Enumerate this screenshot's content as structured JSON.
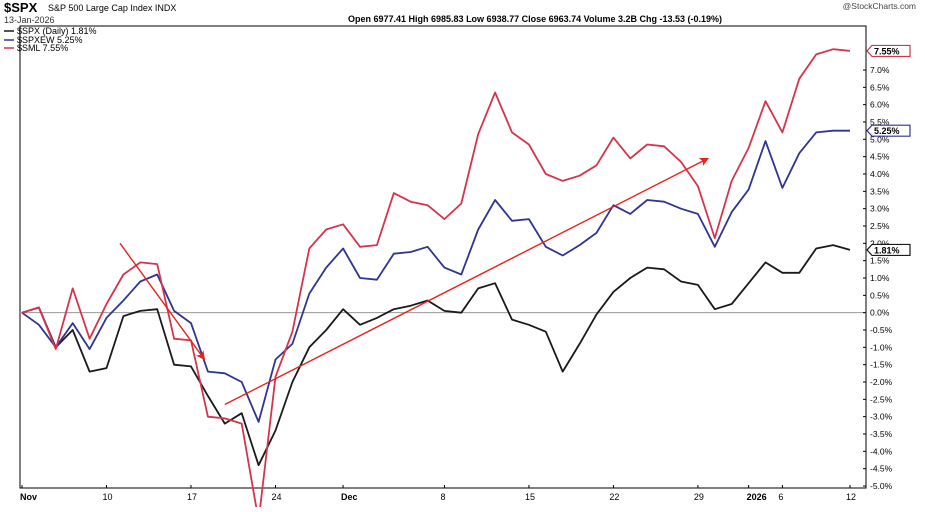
{
  "header": {
    "symbol": "$SPX",
    "name": "S&P 500 Large Cap Index INDX",
    "date": "13-Jan-2026",
    "stats": "Open 6977.41  High 6985.83  Low 6938.77  Close 6963.74  Volume 3.2B  Chg -13.53 (-0.19%)"
  },
  "watermark": "@StockCharts.com",
  "legend": [
    {
      "label": "$SPX (Daily) 1.81%",
      "color": "#1a1a1a"
    },
    {
      "label": "$SPXEW 5.25%",
      "color": "#2e3592"
    },
    {
      "label": "$SML 7.55%",
      "color": "#d4344c"
    }
  ],
  "colors": {
    "spx": "#1a1a1a",
    "spxew": "#2e3592",
    "sml": "#d4344c",
    "arrow": "#e8231c",
    "zero_line": "#999999",
    "frame": "#000000"
  },
  "chart_data": {
    "type": "line",
    "x_tick_labels": [
      {
        "label": "Nov",
        "index": 0,
        "bold": true
      },
      {
        "label": "10",
        "index": 5
      },
      {
        "label": "17",
        "index": 10
      },
      {
        "label": "24",
        "index": 15
      },
      {
        "label": "Dec",
        "index": 19,
        "bold": true
      },
      {
        "label": "8",
        "index": 25
      },
      {
        "label": "15",
        "index": 30
      },
      {
        "label": "22",
        "index": 35
      },
      {
        "label": "29",
        "index": 40
      },
      {
        "label": "2026",
        "index": 43,
        "bold": true
      },
      {
        "label": "6",
        "index": 45
      },
      {
        "label": "12",
        "index": 49
      }
    ],
    "y_ticks": [
      "7.0%",
      "6.5%",
      "6.0%",
      "5.5%",
      "5.0%",
      "4.5%",
      "4.0%",
      "3.5%",
      "3.0%",
      "2.5%",
      "2.0%",
      "1.5%",
      "1.0%",
      "0.5%",
      "0.0%",
      "-0.5%",
      "-1.0%",
      "-1.5%",
      "-2.0%",
      "-2.5%",
      "-3.0%",
      "-3.5%",
      "-4.0%",
      "-4.5%",
      "-5.0%"
    ],
    "ylim": [
      -5.0,
      7.7
    ],
    "x_count": 51,
    "last_value_badges": [
      {
        "series": 2,
        "label": "7.55%",
        "value": 7.55
      },
      {
        "series": 1,
        "label": "5.25%",
        "value": 5.25
      },
      {
        "series": 0,
        "label": "1.81%",
        "value": 1.81
      }
    ],
    "series": [
      {
        "name": "$SPX (Daily) 1.81%",
        "values": [
          0.0,
          0.15,
          -1.0,
          -0.5,
          -1.7,
          -1.6,
          -0.1,
          0.05,
          0.1,
          -1.5,
          -1.55,
          -2.4,
          -3.2,
          -2.9,
          -4.4,
          -3.4,
          -2.0,
          -1.0,
          -0.5,
          0.1,
          -0.35,
          -0.15,
          0.1,
          0.2,
          0.35,
          0.05,
          0.0,
          0.7,
          0.85,
          -0.2,
          -0.35,
          -0.55,
          -1.7,
          -0.9,
          -0.05,
          0.6,
          1.0,
          1.3,
          1.25,
          0.9,
          0.8,
          0.1,
          0.25,
          0.85,
          1.45,
          1.15,
          1.15,
          1.85,
          1.95,
          1.81
        ]
      },
      {
        "name": "$SPXEW 5.25%",
        "values": [
          0.0,
          -0.35,
          -1.0,
          -0.3,
          -1.05,
          -0.15,
          0.35,
          0.9,
          1.1,
          0.05,
          -0.3,
          -1.7,
          -1.75,
          -2.0,
          -3.15,
          -1.35,
          -0.9,
          0.55,
          1.3,
          1.85,
          1.0,
          0.95,
          1.7,
          1.75,
          1.9,
          1.3,
          1.1,
          2.4,
          3.25,
          2.65,
          2.7,
          1.9,
          1.65,
          1.95,
          2.3,
          3.1,
          2.85,
          3.25,
          3.2,
          3.0,
          2.85,
          1.9,
          2.9,
          3.55,
          4.95,
          3.6,
          4.6,
          5.2,
          5.25,
          5.25
        ]
      },
      {
        "name": "$SML 7.55%",
        "values": [
          0.0,
          0.15,
          -1.05,
          0.7,
          -0.75,
          0.25,
          1.1,
          1.45,
          1.4,
          -0.75,
          -0.8,
          -3.0,
          -3.05,
          -3.2,
          -6.0,
          -1.85,
          -0.55,
          1.85,
          2.4,
          2.55,
          1.9,
          1.95,
          3.45,
          3.2,
          3.1,
          2.7,
          3.15,
          5.15,
          6.35,
          5.2,
          4.85,
          4.0,
          3.8,
          3.95,
          4.25,
          5.05,
          4.45,
          4.85,
          4.8,
          4.35,
          3.65,
          2.15,
          3.8,
          4.75,
          6.1,
          5.2,
          6.75,
          7.45,
          7.6,
          7.55
        ]
      }
    ],
    "annotations": [
      {
        "type": "arrow",
        "from": [
          5.8,
          2.0
        ],
        "to": [
          10.8,
          -1.35
        ]
      },
      {
        "type": "arrow",
        "from": [
          12.0,
          -2.65
        ],
        "to": [
          40.6,
          4.45
        ]
      }
    ]
  }
}
